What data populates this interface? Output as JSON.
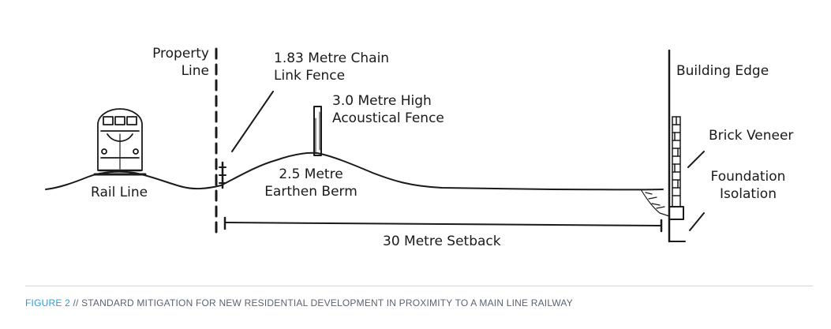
{
  "labels": {
    "property_line": [
      "Property",
      "Line"
    ],
    "chain_link_fence": [
      "1.83 Metre Chain",
      "Link Fence"
    ],
    "acoustical_fence": [
      "3.0 Metre High",
      "Acoustical Fence"
    ],
    "building_edge": "Building Edge",
    "brick_veneer": "Brick Veneer",
    "foundation_isolation": [
      "Foundation",
      "Isolation"
    ],
    "earthen_berm": [
      "2.5 Metre",
      "Earthen Berm"
    ],
    "rail_line": "Rail Line",
    "setback": "30 Metre Setback"
  },
  "caption": {
    "figure_number": "FIGURE 2",
    "text": " // STANDARD MITIGATION FOR NEW RESIDENTIAL DEVELOPMENT IN PROXIMITY TO A MAIN LINE RAILWAY"
  },
  "colors": {
    "ink": "#1a1a1a",
    "caption_accent": "#2a9fd8",
    "caption_text": "#5a6470",
    "divider": "#cfd6dc"
  }
}
